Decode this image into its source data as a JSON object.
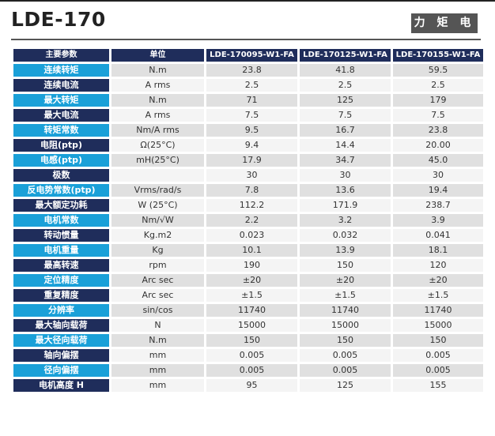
{
  "header": {
    "title": "LDE-170",
    "category": "力 矩 电 机"
  },
  "table": {
    "columns": [
      "主要参数",
      "单位",
      "LDE-170095-W1-FA",
      "LDE-170125-W1-FA",
      "LDE-170155-W1-FA"
    ],
    "rows": [
      [
        "连续转矩",
        "N.m",
        "23.8",
        "41.8",
        "59.5"
      ],
      [
        "连续电流",
        "A rms",
        "2.5",
        "2.5",
        "2.5"
      ],
      [
        "最大转矩",
        "N.m",
        "71",
        "125",
        "179"
      ],
      [
        "最大电流",
        "A rms",
        "7.5",
        "7.5",
        "7.5"
      ],
      [
        "转矩常数",
        "Nm/A rms",
        "9.5",
        "16.7",
        "23.8"
      ],
      [
        "电阻(ptp)",
        "Ω(25°C)",
        "9.4",
        "14.4",
        "20.00"
      ],
      [
        "电感(ptp)",
        "mH(25°C)",
        "17.9",
        "34.7",
        "45.0"
      ],
      [
        "极数",
        "",
        "30",
        "30",
        "30"
      ],
      [
        "反电势常数(ptp)",
        "Vrms/rad/s",
        "7.8",
        "13.6",
        "19.4"
      ],
      [
        "最大额定功耗",
        "W (25°C)",
        "112.2",
        "171.9",
        "238.7"
      ],
      [
        "电机常数",
        "Nm/√W",
        "2.2",
        "3.2",
        "3.9"
      ],
      [
        "转动惯量",
        "Kg.m2",
        "0.023",
        "0.032",
        "0.041"
      ],
      [
        "电机重量",
        "Kg",
        "10.1",
        "13.9",
        "18.1"
      ],
      [
        "最高转速",
        "rpm",
        "190",
        "150",
        "120"
      ],
      [
        "定位精度",
        "Arc sec",
        "±20",
        "±20",
        "±20"
      ],
      [
        "重复精度",
        "Arc sec",
        "±1.5",
        "±1.5",
        "±1.5"
      ],
      [
        "分辨率",
        "sin/cos",
        "11740",
        "11740",
        "11740"
      ],
      [
        "最大轴向载荷",
        "N",
        "15000",
        "15000",
        "15000"
      ],
      [
        "最大径向载荷",
        "N.m",
        "150",
        "150",
        "150"
      ],
      [
        "轴向偏摆",
        "mm",
        "0.005",
        "0.005",
        "0.005"
      ],
      [
        "径向偏摆",
        "mm",
        "0.005",
        "0.005",
        "0.005"
      ],
      [
        "电机高度 H",
        "mm",
        "95",
        "125",
        "155"
      ]
    ]
  },
  "colors": {
    "header_dark": "#1f2d5b",
    "param_light": "#1aa0d8",
    "row_gray": "#e0e0e0",
    "row_light": "#f4f4f4",
    "badge": "#555555"
  }
}
